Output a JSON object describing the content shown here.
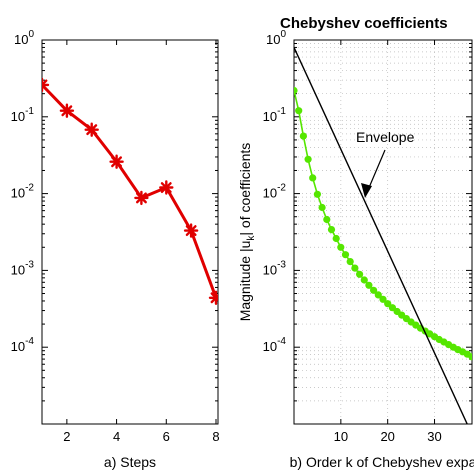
{
  "chart_data": [
    {
      "type": "line",
      "title": "",
      "xlabel": "a) Steps",
      "ylabel": "",
      "xlim": [
        1,
        8
      ],
      "ylim_exp": [
        -5,
        0
      ],
      "y_scale": "log",
      "x_ticks": [
        2,
        4,
        6,
        8
      ],
      "x_tick_labels": [
        "2",
        "4",
        "6",
        "8"
      ],
      "y_tick_exps": [
        0,
        -1,
        -2,
        -3,
        -4
      ],
      "y_tick_labels": [
        {
          "base": "10",
          "exp": "0"
        },
        {
          "base": "10",
          "exp": "-1"
        },
        {
          "base": "10",
          "exp": "-2"
        },
        {
          "base": "10",
          "exp": "-3"
        },
        {
          "base": "10",
          "exp": "-4"
        }
      ],
      "grid": false,
      "series": [
        {
          "color": "#e00000",
          "marker": "asterisk",
          "x": [
            1,
            2,
            3,
            4,
            5,
            6,
            7,
            8
          ],
          "y": [
            0.26,
            0.12,
            0.068,
            0.026,
            0.0088,
            0.012,
            0.0033,
            0.00044
          ]
        }
      ]
    },
    {
      "type": "line",
      "title": "Chebyshev coefficients",
      "xlabel": "b) Order k of Chebyshev expa",
      "ylabel_parts": [
        "Magnitude |u",
        "k",
        "| of coefficients"
      ],
      "xlim": [
        0,
        38
      ],
      "ylim_exp": [
        -5,
        0
      ],
      "y_scale": "log",
      "x_ticks": [
        10,
        20,
        30
      ],
      "x_tick_labels": [
        "10",
        "20",
        "30"
      ],
      "y_tick_exps": [
        0,
        -1,
        -2,
        -3,
        -4
      ],
      "y_tick_labels": [
        {
          "base": "10",
          "exp": "0"
        },
        {
          "base": "10",
          "exp": "-1"
        },
        {
          "base": "10",
          "exp": "-2"
        },
        {
          "base": "10",
          "exp": "-3"
        },
        {
          "base": "10",
          "exp": "-4"
        }
      ],
      "grid": true,
      "annotation": "Envelope",
      "series": [
        {
          "color": "#55e600",
          "marker": "dot",
          "x": [
            0,
            1,
            2,
            3,
            4,
            5,
            6,
            7,
            8,
            9,
            10,
            11,
            12,
            13,
            14,
            15,
            16,
            17,
            18,
            19,
            20,
            21,
            22,
            23,
            24,
            25,
            26,
            27,
            28,
            29,
            30,
            31,
            32,
            33,
            34,
            35,
            36,
            37,
            38
          ],
          "y": [
            0.22,
            0.12,
            0.056,
            0.028,
            0.016,
            0.0098,
            0.0066,
            0.0046,
            0.0034,
            0.0026,
            0.002,
            0.0016,
            0.0013,
            0.00107,
            0.00089,
            0.00075,
            0.00064,
            0.00055,
            0.00048,
            0.00042,
            0.000369,
            0.000327,
            0.000292,
            0.000262,
            0.000236,
            0.000213,
            0.000194,
            0.000177,
            0.000162,
            0.000149,
            0.000137,
            0.000126,
            0.000117,
            0.000108,
            0.0001,
            9.3e-05,
            8.7e-05,
            8.1e-05,
            7.5e-05
          ]
        },
        {
          "color": "#000000",
          "marker": "none",
          "x": [
            0,
            38
          ],
          "y": [
            0.8,
            7.3e-06
          ]
        }
      ]
    }
  ]
}
